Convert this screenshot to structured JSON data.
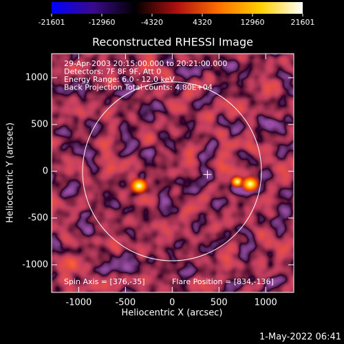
{
  "chart_data": {
    "type": "image",
    "title": "Reconstructed RHESSI Image",
    "x_label": "Heliocentric X (arcsec)",
    "y_label": "Heliocentric Y (arcsec)",
    "xlim": [
      -1290,
      1300
    ],
    "ylim": [
      -1295,
      1257
    ],
    "xticks": [
      -1000,
      -500,
      0,
      500,
      1000
    ],
    "yticks": [
      -1000,
      -500,
      0,
      500,
      1000
    ],
    "colorbar": {
      "lim": [
        -21601,
        21601
      ],
      "ticks": [
        -21601,
        -12960,
        -4320,
        4320,
        12960,
        21601
      ],
      "colors": [
        "#0000ff",
        "#3a0a8a",
        "#000000",
        "#b01010",
        "#ff7000",
        "#ffd000",
        "#ffffff"
      ]
    },
    "annotations": [
      "29-Apr-2003 20:15:00.000 to 20:21:00.000",
      "Detectors: 7F 8F 9F, Att 0",
      "Energy Range: 6.0 - 12.0 keV",
      "Back Projection     Total counts: 4.80E+04"
    ],
    "spin_axis_label": "Spin Axis = [376,-35]",
    "flare_position_label": "Flare Position = [834,-136]",
    "spin_axis": [
      376,
      -35
    ],
    "flare_position": [
      834,
      -136
    ],
    "timestamp": "1-May-2022 06:41"
  }
}
